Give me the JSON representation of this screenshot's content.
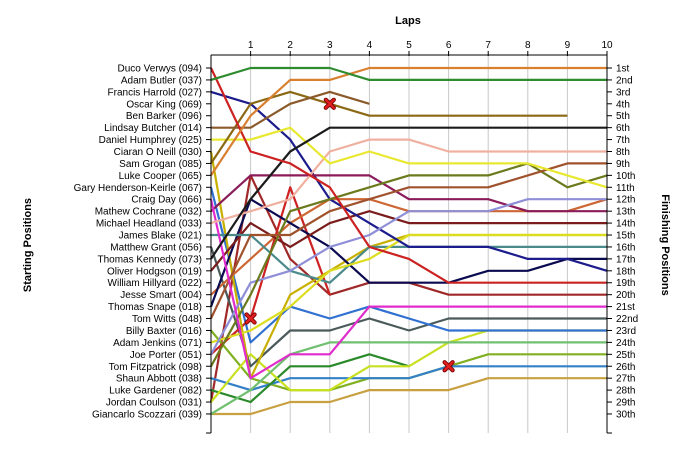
{
  "chart_data": {
    "type": "line",
    "title": "Laps",
    "ylabel_left": "Starting Positions",
    "ylabel_right": "Finishing Positions",
    "x_ticks": [
      "1",
      "2",
      "3",
      "4",
      "5",
      "6",
      "7",
      "8",
      "9",
      "10"
    ],
    "x_range": [
      0,
      10
    ],
    "grid": "vertical",
    "position_labels": [
      "1st",
      "2nd",
      "3rd",
      "4th",
      "5th",
      "6th",
      "7th",
      "8th",
      "9th",
      "10th",
      "11th",
      "12th",
      "13th",
      "14th",
      "15th",
      "16th",
      "17th",
      "18th",
      "19th",
      "20th",
      "21st",
      "22nd",
      "23rd",
      "24th",
      "25th",
      "26th",
      "27th",
      "28th",
      "29th",
      "30th"
    ],
    "series": [
      {
        "name": "Duco Verwys (094)",
        "color": "#2e8b2e",
        "values": [
          2,
          1,
          1,
          1,
          2,
          2,
          2,
          2,
          2,
          2,
          2
        ]
      },
      {
        "name": "Adam Butler (037)",
        "color": "#d98030",
        "values": [
          10,
          5,
          2,
          2,
          1,
          1,
          1,
          1,
          1,
          1,
          1
        ]
      },
      {
        "name": "Francis Harrold (027)",
        "color": "#cc2222",
        "values": [
          1,
          8,
          9,
          11,
          16,
          17,
          19,
          19,
          19,
          19,
          19
        ]
      },
      {
        "name": "Oscar King (069)",
        "color": "#8b5a2b",
        "values": [
          6,
          6,
          4,
          3,
          4
        ]
      },
      {
        "name": "Ben Barker (096)",
        "color": "#8b6914",
        "values": [
          9,
          4,
          3,
          4,
          5,
          5,
          5,
          5,
          5,
          5
        ]
      },
      {
        "name": "Lindsay Butcher (014)",
        "color": "#1c1c1c",
        "values": [
          17,
          12,
          8,
          6,
          6,
          6,
          6,
          6,
          6,
          6,
          6
        ]
      },
      {
        "name": "Daniel Humphrey (025)",
        "color": "#e8e830",
        "values": [
          7,
          7,
          6,
          9,
          8,
          9,
          9,
          9,
          9,
          10,
          11
        ]
      },
      {
        "name": "Ciaran O Neill (030)",
        "color": "#f0b0a0",
        "values": [
          14,
          13,
          12,
          8,
          7,
          7,
          8,
          8,
          8,
          8,
          8
        ]
      },
      {
        "name": "Sam Grogan (085)",
        "color": "#e02ccc",
        "values": [
          12,
          27,
          25,
          25,
          21,
          21,
          21,
          21,
          21,
          21,
          21
        ]
      },
      {
        "name": "Luke Cooper (065)",
        "color": "#a0522d",
        "values": [
          22,
          15,
          15,
          13,
          12,
          11,
          11,
          11,
          10,
          9,
          9
        ]
      },
      {
        "name": "Gary Henderson-Keirle (067)",
        "color": "#6b7a1c",
        "values": [
          26,
          20,
          13,
          12,
          11,
          10,
          10,
          10,
          9,
          11,
          10
        ]
      },
      {
        "name": "Craig Day (066)",
        "color": "#8f8fd8",
        "values": [
          25,
          19,
          18,
          16,
          15,
          13,
          13,
          13,
          12,
          12,
          12
        ]
      },
      {
        "name": "Mathew Cochrane (032)",
        "color": "#8b1c5a",
        "values": [
          13,
          10,
          10,
          10,
          10,
          12,
          12,
          12,
          13,
          13,
          13
        ]
      },
      {
        "name": "Michael Headland (033)",
        "color": "#1c1c8c",
        "values": [
          3,
          4,
          7,
          12,
          14,
          16,
          16,
          16,
          17,
          17,
          18
        ]
      },
      {
        "name": "James Blake (021)",
        "color": "#dddd20",
        "values": [
          24,
          23,
          21,
          18,
          17,
          15,
          15,
          15,
          15,
          15,
          15
        ]
      },
      {
        "name": "Matthew Grant (056)",
        "color": "#4a8a8a",
        "values": [
          15,
          15,
          18,
          19,
          16,
          16,
          16,
          16,
          16,
          16,
          16
        ]
      },
      {
        "name": "Thomas Kennedy (073)",
        "color": "#7a1c1c",
        "values": [
          18,
          14,
          16,
          14,
          13,
          14,
          14,
          14,
          14,
          14,
          14
        ]
      },
      {
        "name": "Oliver Hodgson (019)",
        "color": "#0a0a50",
        "values": [
          21,
          12,
          14,
          16,
          19,
          19,
          19,
          18,
          18,
          17,
          17
        ]
      },
      {
        "name": "William Hillyard (022)",
        "color": "#cc6633",
        "values": [
          20,
          17,
          14,
          12,
          12,
          13,
          13,
          13,
          13,
          13,
          12
        ]
      },
      {
        "name": "Jesse Smart (004)",
        "color": "#c8b000",
        "values": [
          8,
          27,
          20,
          18,
          16,
          15,
          15,
          15,
          15,
          15,
          15
        ]
      },
      {
        "name": "Thomas Snape (018)",
        "color": "#3070d0",
        "values": [
          11,
          24,
          21,
          22,
          21,
          22,
          23,
          23,
          23,
          23,
          23
        ]
      },
      {
        "name": "Tom Witts (048)",
        "color": "#cc2222",
        "values": [
          25,
          22,
          11,
          20
        ]
      },
      {
        "name": "Billy Baxter (016)",
        "color": "#4a5a5a",
        "values": [
          16,
          26,
          23,
          23,
          22,
          23,
          22,
          22,
          22,
          22,
          22
        ]
      },
      {
        "name": "Adam Jenkins (071)",
        "color": "#70c070",
        "values": [
          30,
          28,
          25,
          24,
          24,
          24,
          24,
          24,
          24,
          24,
          24
        ]
      },
      {
        "name": "Joe Porter (051)",
        "color": "#c8e020",
        "values": [
          29,
          25,
          28,
          28,
          26,
          26,
          24,
          23,
          23,
          23,
          23
        ]
      },
      {
        "name": "Tom Fitzpatrick (098)",
        "color": "#2a8a2a",
        "values": [
          28,
          29,
          26,
          26,
          25,
          26
        ]
      },
      {
        "name": "Shaun Abbott (038)",
        "color": "#3380c8",
        "values": [
          27,
          28,
          27,
          27,
          27,
          27,
          26,
          26,
          26,
          26,
          26
        ]
      },
      {
        "name": "Luke Gardener (082)",
        "color": "#80b020",
        "values": [
          23,
          27,
          28,
          28,
          27,
          27,
          26,
          25,
          25,
          25,
          25
        ]
      },
      {
        "name": "Jordan Coulson (031)",
        "color": "#a02828",
        "values": [
          29,
          10,
          17,
          20,
          19,
          19,
          20,
          20,
          20,
          20,
          20
        ]
      },
      {
        "name": "Giancarlo Scozzari (039)",
        "color": "#c8a040",
        "values": [
          30,
          30,
          29,
          29,
          28,
          28,
          28,
          27,
          27,
          27,
          27
        ]
      }
    ],
    "retirements": [
      {
        "series": "Oscar King (069)",
        "lap": 3,
        "position": 4
      },
      {
        "series": "Tom Witts (048)",
        "lap": 1,
        "position": 22
      },
      {
        "series": "Tom Fitzpatrick (098)",
        "lap": 6,
        "position": 26
      }
    ]
  }
}
